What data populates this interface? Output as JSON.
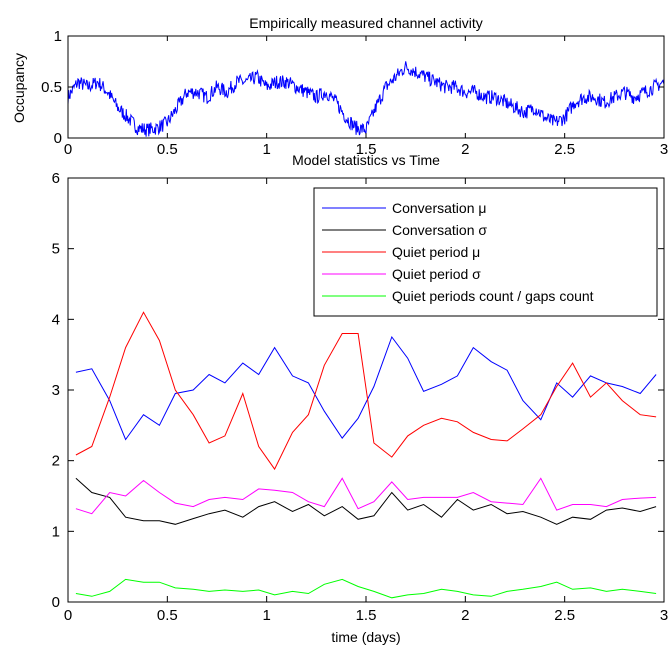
{
  "chart_data": [
    {
      "type": "line",
      "title": "Empirically measured channel activity",
      "xlabel": "",
      "ylabel": "Occupancy",
      "xlim": [
        0,
        3
      ],
      "ylim": [
        0,
        1
      ],
      "xticks": [
        "0",
        "0.5",
        "1",
        "1.5",
        "2",
        "2.5",
        "3"
      ],
      "yticks": [
        "0",
        "0.5",
        "1"
      ],
      "grid": false,
      "series": [
        {
          "color": "#0000ff",
          "x": [
            0,
            0.05,
            0.1,
            0.15,
            0.2,
            0.25,
            0.3,
            0.35,
            0.4,
            0.45,
            0.5,
            0.55,
            0.6,
            0.65,
            0.7,
            0.75,
            0.8,
            0.85,
            0.9,
            0.95,
            1.0,
            1.05,
            1.1,
            1.15,
            1.2,
            1.25,
            1.3,
            1.35,
            1.4,
            1.45,
            1.5,
            1.55,
            1.6,
            1.65,
            1.7,
            1.75,
            1.8,
            1.85,
            1.9,
            1.95,
            2.0,
            2.05,
            2.1,
            2.15,
            2.2,
            2.25,
            2.3,
            2.35,
            2.4,
            2.45,
            2.5,
            2.55,
            2.6,
            2.65,
            2.7,
            2.75,
            2.8,
            2.85,
            2.9,
            2.95,
            3.0
          ],
          "y": [
            0.4,
            0.55,
            0.5,
            0.55,
            0.45,
            0.3,
            0.2,
            0.1,
            0.08,
            0.1,
            0.15,
            0.3,
            0.45,
            0.45,
            0.4,
            0.5,
            0.45,
            0.55,
            0.55,
            0.6,
            0.5,
            0.55,
            0.55,
            0.5,
            0.45,
            0.4,
            0.45,
            0.35,
            0.2,
            0.1,
            0.08,
            0.3,
            0.5,
            0.6,
            0.7,
            0.65,
            0.6,
            0.55,
            0.5,
            0.5,
            0.45,
            0.45,
            0.4,
            0.4,
            0.35,
            0.3,
            0.25,
            0.3,
            0.2,
            0.15,
            0.2,
            0.35,
            0.4,
            0.4,
            0.35,
            0.4,
            0.45,
            0.4,
            0.45,
            0.5,
            0.55
          ],
          "noise": 0.07
        }
      ]
    },
    {
      "type": "line",
      "title": "Model statistics vs Time",
      "xlabel": "time (days)",
      "ylabel": "",
      "xlim": [
        0,
        3
      ],
      "ylim": [
        0,
        6
      ],
      "xticks": [
        "0",
        "0.5",
        "1",
        "1.5",
        "2",
        "2.5",
        "3"
      ],
      "yticks": [
        "0",
        "1",
        "2",
        "3",
        "4",
        "5",
        "6"
      ],
      "grid": false,
      "legend_position": "top-right",
      "x": [
        0.04,
        0.12,
        0.21,
        0.29,
        0.38,
        0.46,
        0.54,
        0.63,
        0.71,
        0.79,
        0.88,
        0.96,
        1.04,
        1.13,
        1.21,
        1.29,
        1.38,
        1.46,
        1.54,
        1.63,
        1.71,
        1.79,
        1.88,
        1.96,
        2.04,
        2.13,
        2.21,
        2.29,
        2.38,
        2.46,
        2.54,
        2.63,
        2.71,
        2.79,
        2.88,
        2.96
      ],
      "series": [
        {
          "name": "Conversation μ",
          "color": "#0000ff",
          "values": [
            3.25,
            3.3,
            2.85,
            2.3,
            2.65,
            2.5,
            2.95,
            3.0,
            3.22,
            3.1,
            3.38,
            3.22,
            3.6,
            3.2,
            3.1,
            2.7,
            2.32,
            2.6,
            3.05,
            3.75,
            3.45,
            2.98,
            3.08,
            3.2,
            3.6,
            3.4,
            3.28,
            2.85,
            2.58,
            3.1,
            2.9,
            3.2,
            3.1,
            3.05,
            2.95,
            3.22
          ]
        },
        {
          "name": "Conversation σ",
          "color": "#000000",
          "values": [
            1.75,
            1.55,
            1.48,
            1.2,
            1.15,
            1.15,
            1.1,
            1.18,
            1.25,
            1.3,
            1.2,
            1.35,
            1.42,
            1.28,
            1.38,
            1.22,
            1.35,
            1.17,
            1.22,
            1.55,
            1.3,
            1.38,
            1.2,
            1.45,
            1.3,
            1.38,
            1.25,
            1.28,
            1.2,
            1.1,
            1.2,
            1.17,
            1.3,
            1.33,
            1.28,
            1.35
          ]
        },
        {
          "name": "Quiet period μ",
          "color": "#ff0000",
          "values": [
            2.08,
            2.2,
            2.9,
            3.6,
            4.1,
            3.7,
            3.0,
            2.65,
            2.25,
            2.35,
            2.95,
            2.2,
            1.88,
            2.4,
            2.65,
            3.35,
            3.8,
            3.8,
            2.25,
            2.05,
            2.35,
            2.5,
            2.6,
            2.55,
            2.4,
            2.3,
            2.28,
            2.45,
            2.65,
            3.05,
            3.38,
            2.9,
            3.1,
            2.85,
            2.65,
            2.62
          ]
        },
        {
          "name": "Quiet period σ",
          "color": "#ff00ff",
          "values": [
            1.32,
            1.25,
            1.55,
            1.5,
            1.72,
            1.55,
            1.4,
            1.35,
            1.45,
            1.48,
            1.45,
            1.6,
            1.58,
            1.55,
            1.42,
            1.35,
            1.75,
            1.32,
            1.42,
            1.7,
            1.45,
            1.48,
            1.48,
            1.48,
            1.55,
            1.42,
            1.4,
            1.38,
            1.75,
            1.3,
            1.38,
            1.38,
            1.35,
            1.45,
            1.47,
            1.48
          ]
        },
        {
          "name": "Quiet periods count / gaps count",
          "color": "#00ff00",
          "values": [
            0.12,
            0.08,
            0.15,
            0.32,
            0.28,
            0.28,
            0.2,
            0.18,
            0.15,
            0.17,
            0.15,
            0.17,
            0.1,
            0.15,
            0.12,
            0.25,
            0.32,
            0.22,
            0.15,
            0.06,
            0.1,
            0.12,
            0.18,
            0.15,
            0.1,
            0.08,
            0.15,
            0.18,
            0.22,
            0.28,
            0.18,
            0.2,
            0.15,
            0.18,
            0.15,
            0.12
          ]
        }
      ]
    }
  ]
}
